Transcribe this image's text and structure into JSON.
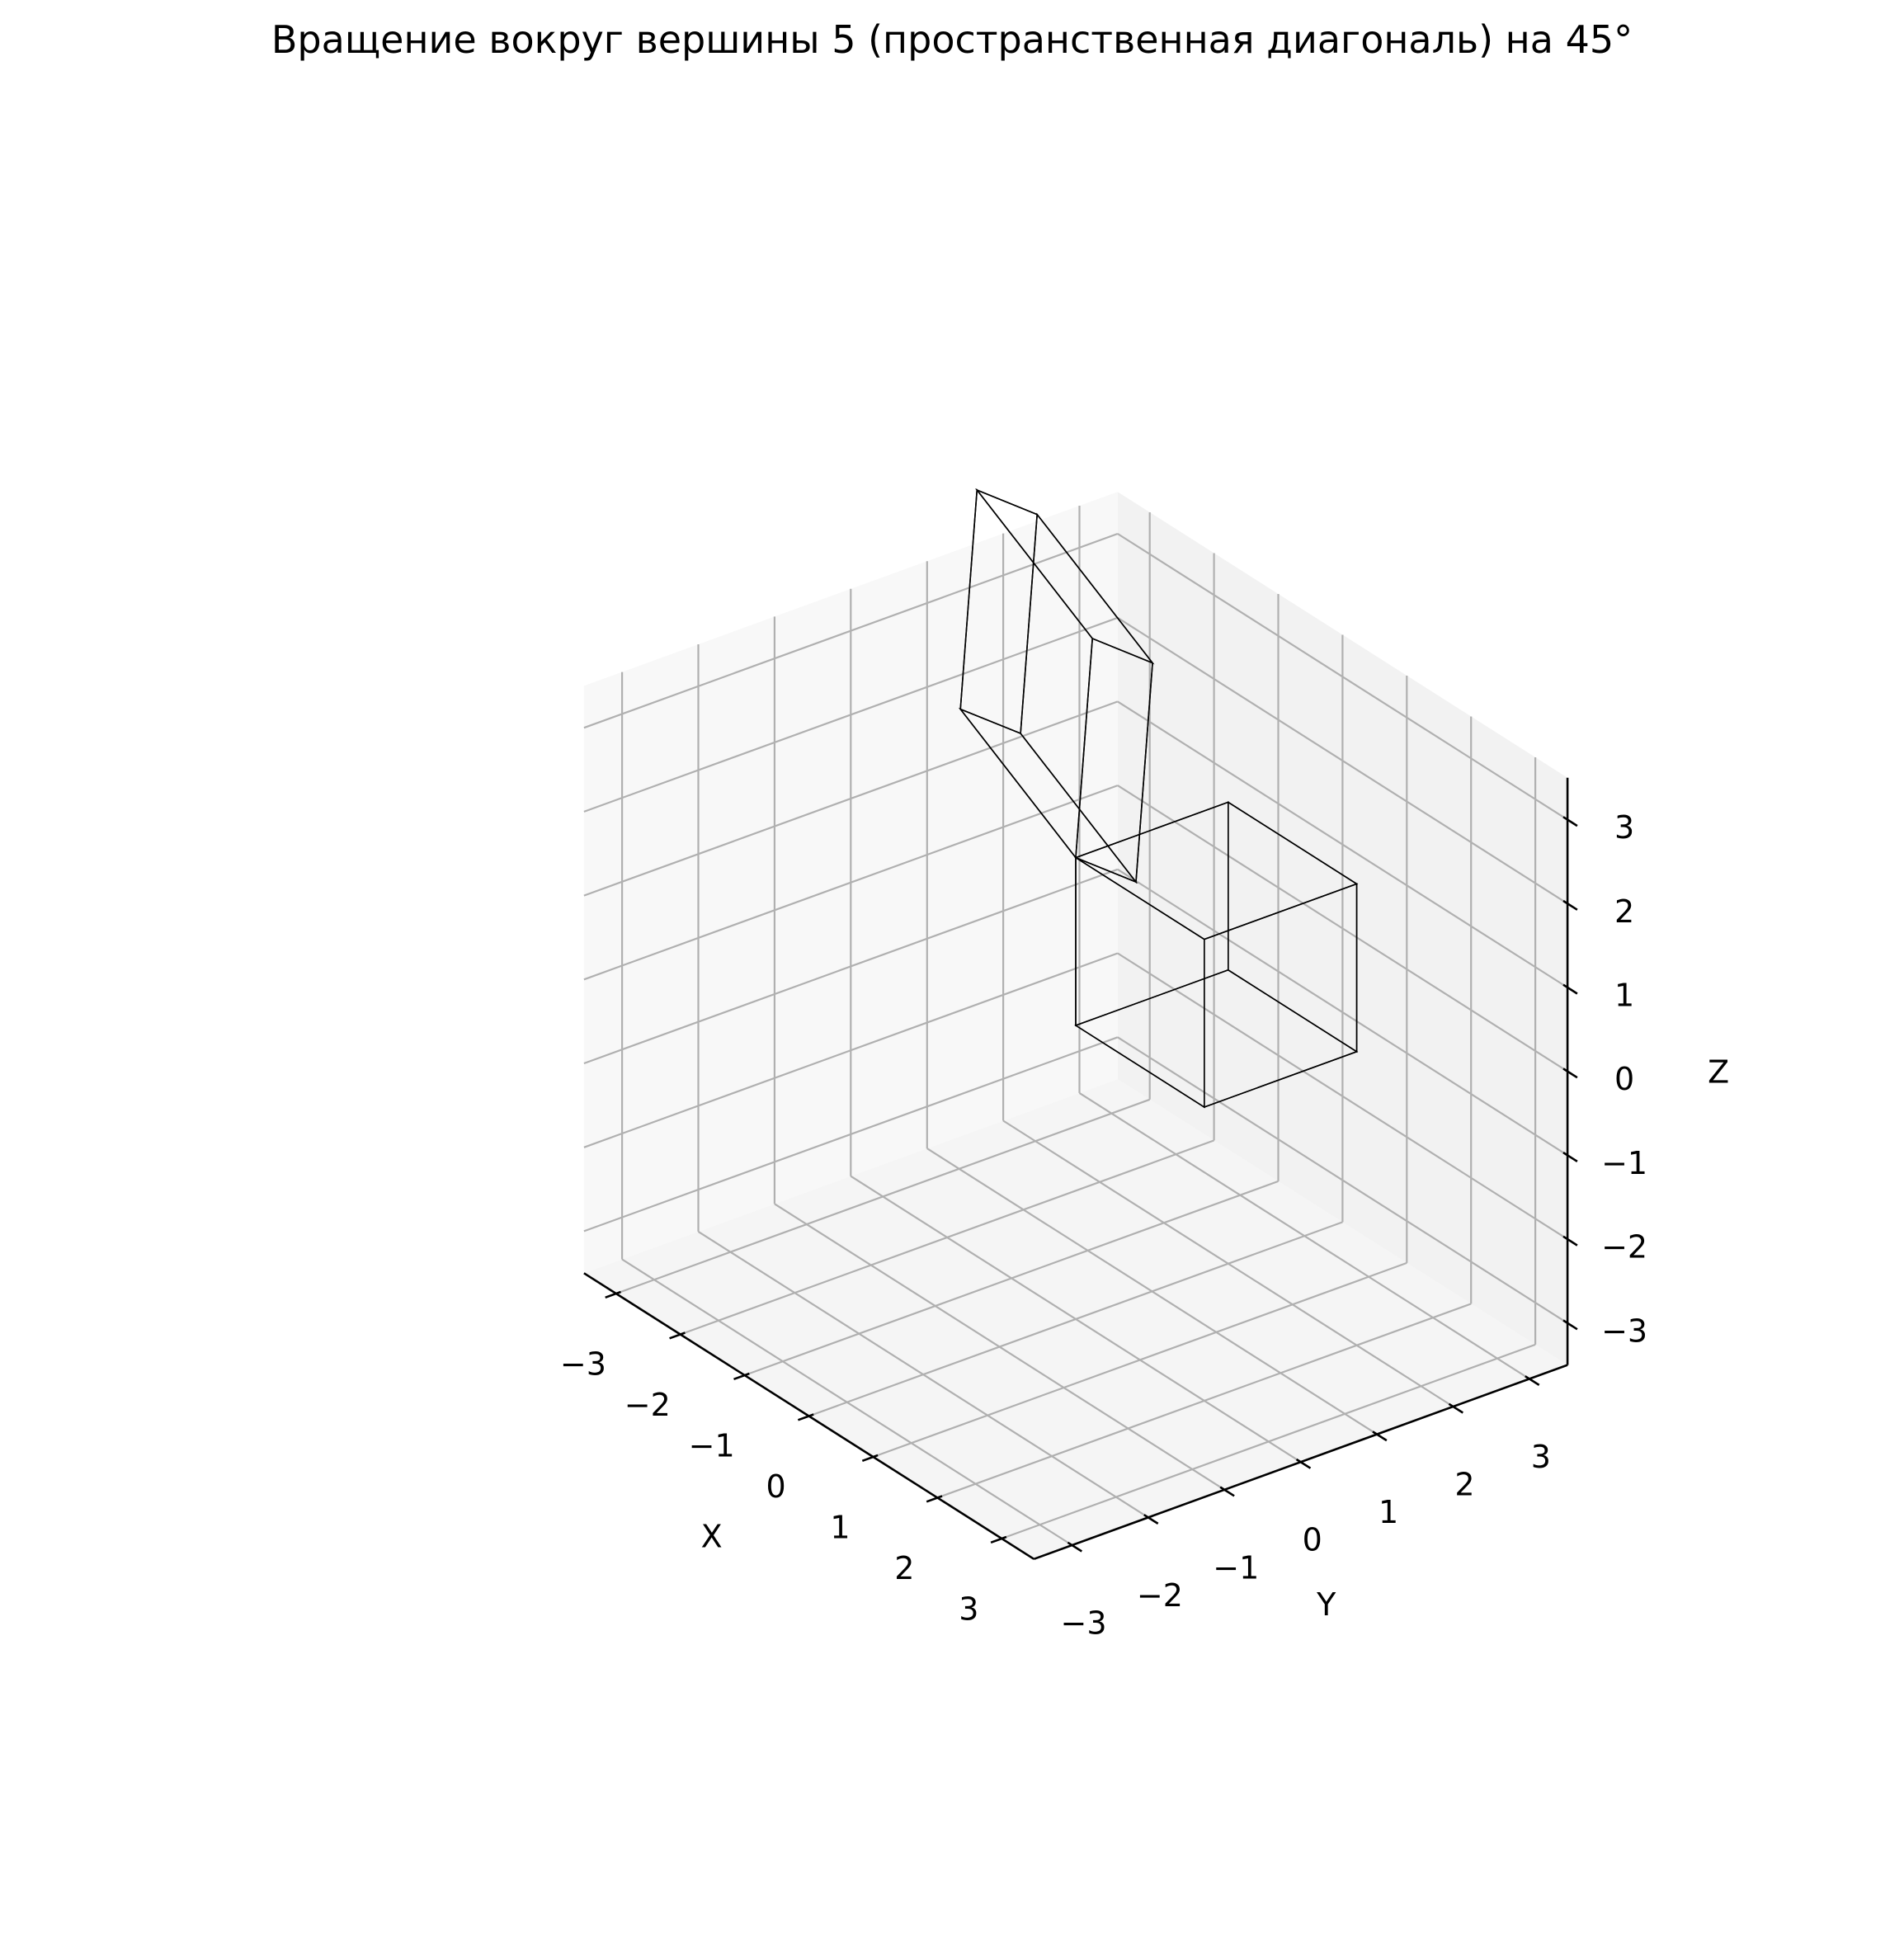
{
  "chart_data": {
    "type": "3d-polyhedra",
    "title": "Вращение вокруг вершины 5 (пространственная диагональ) на 45°",
    "xlabel": "X",
    "ylabel": "Y",
    "zlabel": "Z",
    "xlim": [
      -3.5,
      3.5
    ],
    "ylim": [
      -3.5,
      3.5
    ],
    "zlim": [
      -3.5,
      3.5
    ],
    "xticks": [
      -3,
      -2,
      -1,
      0,
      1,
      2,
      3
    ],
    "yticks": [
      -3,
      -2,
      -1,
      0,
      1,
      2,
      3
    ],
    "zticks": [
      -3,
      -2,
      -1,
      0,
      1,
      2,
      3
    ],
    "x_tick_labels": [
      "−3",
      "−2",
      "−1",
      "0",
      "1",
      "2",
      "3"
    ],
    "y_tick_labels": [
      "−3",
      "−2",
      "−1",
      "0",
      "1",
      "2",
      "3"
    ],
    "z_tick_labels": [
      "−3",
      "−2",
      "−1",
      "0",
      "1",
      "2",
      "3"
    ],
    "grid": true,
    "view": {
      "elev": 30,
      "azim": -45
    },
    "series": [
      {
        "color": "#0000ff",
        "alpha": 0.9,
        "vertices": [
          [
            0,
            0,
            0
          ],
          [
            2,
            0,
            0
          ],
          [
            2,
            2,
            0
          ],
          [
            0,
            2,
            0
          ],
          [
            0,
            0,
            2
          ],
          [
            2,
            0,
            2
          ],
          [
            2,
            2,
            2
          ],
          [
            0,
            2,
            2
          ]
        ],
        "faces": [
          [
            0,
            1,
            2,
            3
          ],
          [
            4,
            5,
            6,
            7
          ],
          [
            0,
            1,
            5,
            4
          ],
          [
            1,
            2,
            6,
            5
          ],
          [
            2,
            3,
            7,
            6
          ],
          [
            3,
            0,
            4,
            7
          ]
        ]
      },
      {
        "color": "#00ffff",
        "alpha": 0.9,
        "vertices": [
          [
            0,
            0,
            2
          ],
          [
            1.911,
            -0.821,
            2.911
          ],
          [
            1.089,
            0.089,
            4.821
          ],
          [
            -0.821,
            0.911,
            3.911
          ],
          [
            -0.821,
            -0.821,
            3.642
          ],
          [
            1.089,
            -1.642,
            4.553
          ],
          [
            0.268,
            -0.732,
            6.463
          ],
          [
            -1.642,
            0.089,
            5.553
          ]
        ],
        "faces": [
          [
            0,
            1,
            2,
            3
          ],
          [
            4,
            5,
            6,
            7
          ],
          [
            0,
            1,
            5,
            4
          ],
          [
            1,
            2,
            6,
            5
          ],
          [
            2,
            3,
            7,
            6
          ],
          [
            3,
            0,
            4,
            7
          ]
        ]
      }
    ]
  }
}
